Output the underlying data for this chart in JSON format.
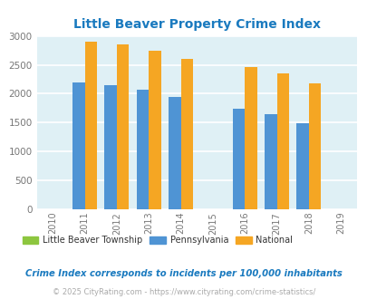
{
  "title": "Little Beaver Property Crime Index",
  "title_color": "#1a7abf",
  "years": [
    2010,
    2011,
    2012,
    2013,
    2014,
    2015,
    2016,
    2017,
    2018,
    2019
  ],
  "x_tick_labels": [
    "2010",
    "2011",
    "2012",
    "2013",
    "2014",
    "2015",
    "2016",
    "2017",
    "2018",
    "2019"
  ],
  "pa_values": {
    "2011": 2200,
    "2012": 2155,
    "2013": 2070,
    "2014": 1950,
    "2016": 1745,
    "2017": 1640,
    "2018": 1490
  },
  "national_values": {
    "2011": 2895,
    "2012": 2845,
    "2013": 2745,
    "2014": 2600,
    "2016": 2460,
    "2017": 2355,
    "2018": 2185
  },
  "lbt_values": {},
  "pa_color": "#4f94d4",
  "national_color": "#f5a623",
  "lbt_color": "#8dc63f",
  "bar_width": 0.38,
  "ylim": [
    0,
    3000
  ],
  "yticks": [
    0,
    500,
    1000,
    1500,
    2000,
    2500,
    3000
  ],
  "bg_color": "#dff0f5",
  "grid_color": "#ffffff",
  "legend_labels": [
    "Little Beaver Township",
    "Pennsylvania",
    "National"
  ],
  "note_text": "Crime Index corresponds to incidents per 100,000 inhabitants",
  "note_color": "#1a7abf",
  "footer_text": "© 2025 CityRating.com - https://www.cityrating.com/crime-statistics/",
  "footer_color": "#aaaaaa",
  "xlim": [
    2009.5,
    2019.5
  ]
}
